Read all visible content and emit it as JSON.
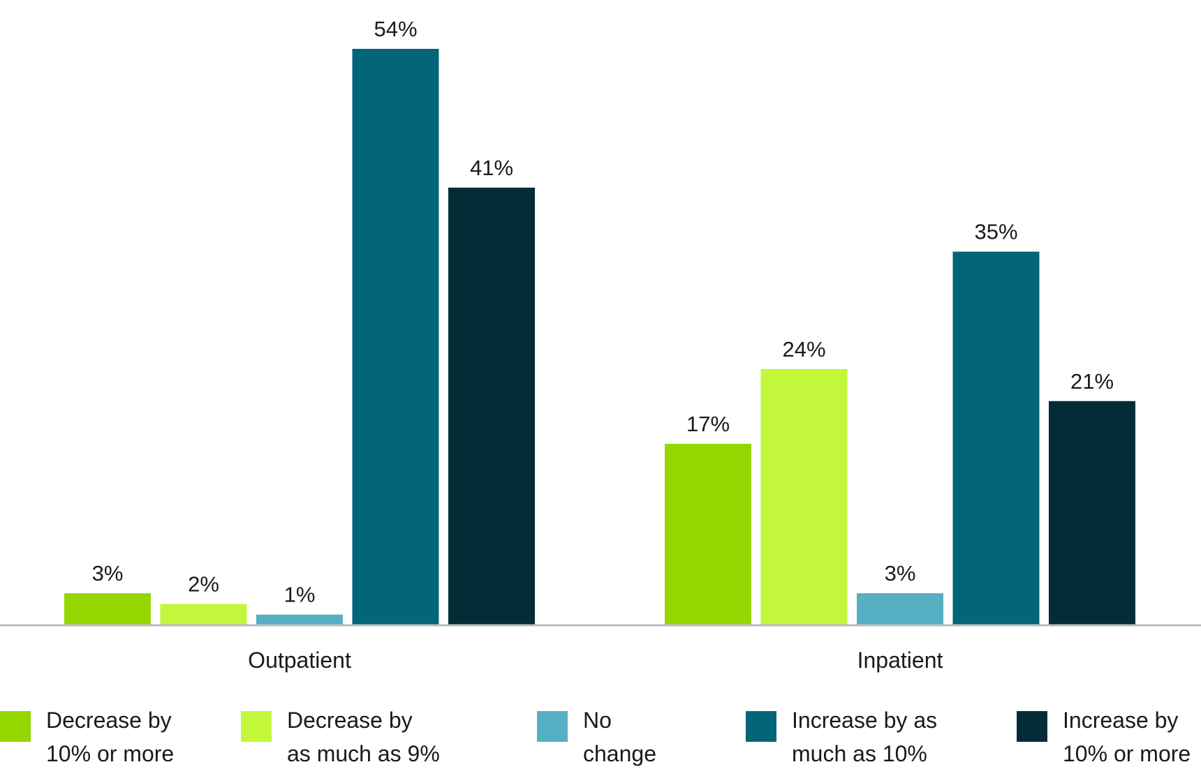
{
  "chart_data": {
    "type": "bar",
    "categories": [
      "Outpatient",
      "Inpatient"
    ],
    "series": [
      {
        "name": "Decrease by 10% or more",
        "legend_lines": [
          "Decrease by",
          "10% or more"
        ],
        "values": [
          3,
          17
        ],
        "value_labels": [
          "3%",
          "17%"
        ],
        "color": "#94d600"
      },
      {
        "name": "Decrease by as much as 9%",
        "legend_lines": [
          "Decrease by",
          "as much as 9%"
        ],
        "values": [
          2,
          24
        ],
        "value_labels": [
          "2%",
          "24%"
        ],
        "color": "#c2f73b"
      },
      {
        "name": "No change",
        "legend_lines": [
          "No",
          "change"
        ],
        "values": [
          1,
          3
        ],
        "value_labels": [
          "1%",
          "3%"
        ],
        "color": "#56afc3"
      },
      {
        "name": "Increase by as much as 10%",
        "legend_lines": [
          "Increase by as",
          "much as 10%"
        ],
        "values": [
          54,
          35
        ],
        "value_labels": [
          "54%",
          "35%"
        ],
        "color": "#036678"
      },
      {
        "name": "Increase by 10% or more",
        "legend_lines": [
          "Increase by",
          "10% or more"
        ],
        "values": [
          41,
          21
        ],
        "value_labels": [
          "41%",
          "21%"
        ],
        "color": "#022d37"
      }
    ],
    "ylim": [
      0,
      54
    ],
    "grid": false,
    "legend_position": "bottom",
    "axis_color": "#b8bec2"
  }
}
